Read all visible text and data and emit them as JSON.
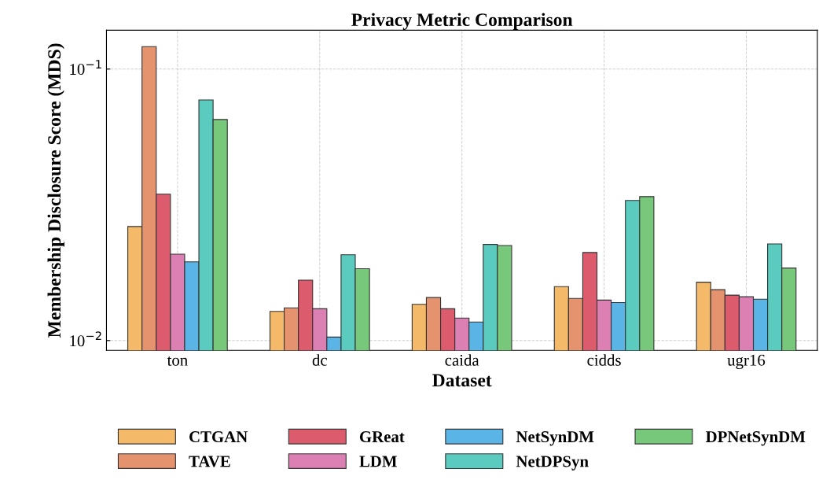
{
  "chart_data": {
    "type": "bar",
    "title": "Privacy Metric Comparison",
    "xlabel": "Dataset",
    "ylabel": "Membership Disclosure Score (MDS)",
    "categories": [
      "ton",
      "dc",
      "caida",
      "cidds",
      "ugr16"
    ],
    "series": [
      {
        "name": "CTGAN",
        "color": "#f5b96a",
        "values": [
          0.0263,
          0.0128,
          0.0136,
          0.0158,
          0.0164
        ]
      },
      {
        "name": "TAVE",
        "color": "#e5936e",
        "values": [
          0.121,
          0.0132,
          0.0144,
          0.0143,
          0.0154
        ]
      },
      {
        "name": "GReat",
        "color": "#dc5c6e",
        "values": [
          0.0346,
          0.0167,
          0.0131,
          0.0211,
          0.0147
        ]
      },
      {
        "name": "LDM",
        "color": "#dc7fb3",
        "values": [
          0.0208,
          0.0131,
          0.0121,
          0.0141,
          0.0145
        ]
      },
      {
        "name": "NetSynDM",
        "color": "#5ab4e5",
        "values": [
          0.0195,
          0.0103,
          0.0117,
          0.0138,
          0.0142
        ]
      },
      {
        "name": "NetDPSyn",
        "color": "#5ccbbf",
        "values": [
          0.077,
          0.0207,
          0.0226,
          0.0328,
          0.0227
        ]
      },
      {
        "name": "DPNetSynDM",
        "color": "#78c87c",
        "values": [
          0.0652,
          0.0184,
          0.0224,
          0.0339,
          0.0185
        ]
      }
    ],
    "log": "y",
    "ylim": [
      0.0092,
      0.139
    ],
    "yticks": [
      {
        "value": 0.01,
        "label": "10$^{−2}$"
      },
      {
        "value": 0.1,
        "label": "10$^{−1}$"
      }
    ],
    "grid": true,
    "legend": "bottom"
  }
}
